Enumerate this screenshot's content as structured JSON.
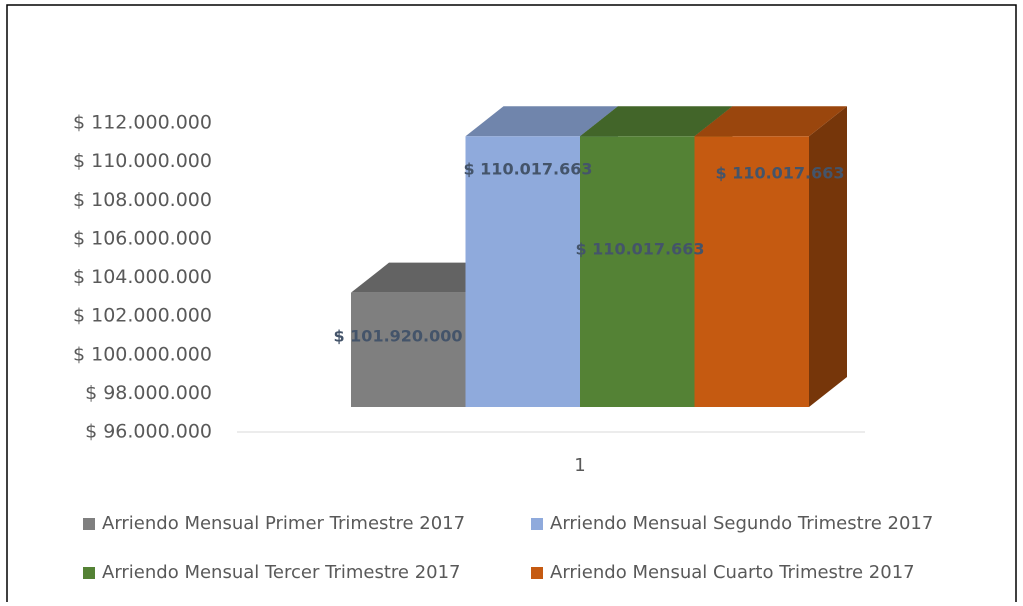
{
  "chart_data": {
    "type": "bar3d",
    "categories": [
      "1"
    ],
    "series": [
      {
        "name": "Arriendo Mensual Primer Trimestre 2017",
        "color": "#7f7f7f",
        "values": [
          101920000
        ],
        "value_labels": [
          "$ 101.920.000"
        ]
      },
      {
        "name": "Arriendo Mensual Segundo Trimestre 2017",
        "color": "#8faadc",
        "values": [
          110017663
        ],
        "value_labels": [
          "$ 110.017.663"
        ]
      },
      {
        "name": "Arriendo Mensual Tercer Trimestre 2017",
        "color": "#548235",
        "values": [
          110017663
        ],
        "value_labels": [
          "$ 110.017.663"
        ]
      },
      {
        "name": "Arriendo Mensual Cuarto Trimestre 2017",
        "color": "#c55a11",
        "values": [
          110017663
        ],
        "value_labels": [
          "$ 110.017.663"
        ]
      }
    ],
    "ylim": [
      96000000,
      112000000
    ],
    "yticks": [
      {
        "value": 96000000,
        "label": "$ 96.000.000"
      },
      {
        "value": 98000000,
        "label": "$ 98.000.000"
      },
      {
        "value": 100000000,
        "label": "$ 100.000.000"
      },
      {
        "value": 102000000,
        "label": "$ 102.000.000"
      },
      {
        "value": 104000000,
        "label": "$ 104.000.000"
      },
      {
        "value": 106000000,
        "label": "$ 106.000.000"
      },
      {
        "value": 108000000,
        "label": "$ 108.000.000"
      },
      {
        "value": 110000000,
        "label": "$ 110.000.000"
      },
      {
        "value": 112000000,
        "label": "$ 112.000.000"
      }
    ],
    "grid": false,
    "legend": "bottom"
  }
}
